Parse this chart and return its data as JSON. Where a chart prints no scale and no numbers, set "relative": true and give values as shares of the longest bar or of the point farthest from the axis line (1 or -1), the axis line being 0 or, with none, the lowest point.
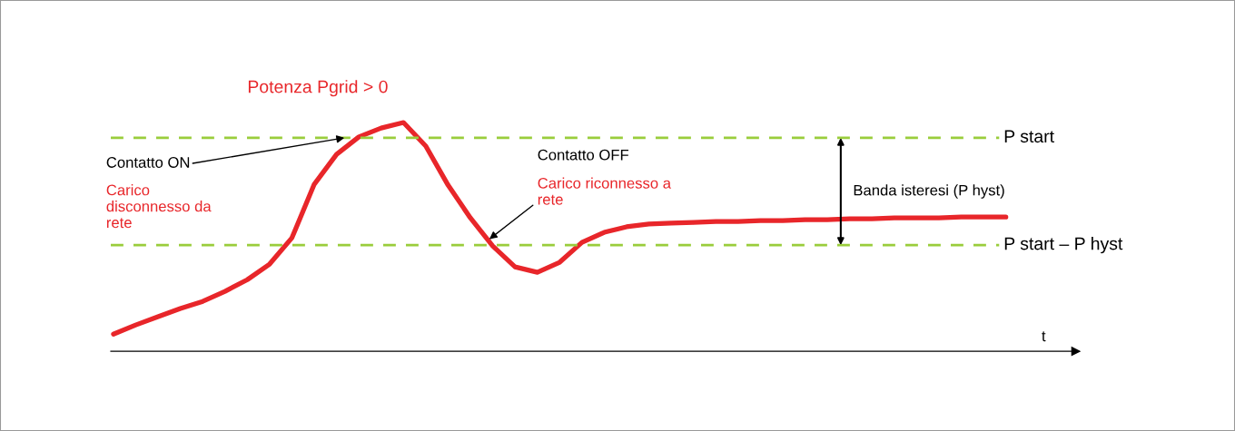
{
  "chart_data": {
    "type": "line",
    "relative": true,
    "title": "Potenza Pgrid > 0",
    "xlabel": "t",
    "categories": [
      null,
      null,
      null,
      null,
      null,
      null,
      null,
      null,
      null,
      null,
      null,
      null,
      null,
      null,
      null,
      null,
      null,
      null,
      null,
      null,
      null,
      null,
      null,
      null,
      null,
      null,
      null,
      null,
      null,
      null,
      null,
      null,
      null,
      null,
      null,
      null,
      null,
      null,
      null,
      null,
      null
    ],
    "series": [
      {
        "color": "#e8262a",
        "values": [
          0.075,
          0.115,
          0.151,
          0.187,
          0.218,
          0.262,
          0.313,
          0.381,
          0.496,
          0.73,
          0.861,
          0.937,
          0.976,
          1.0,
          0.897,
          0.726,
          0.583,
          0.46,
          0.369,
          0.345,
          0.389,
          0.476,
          0.52,
          0.544,
          0.556,
          0.56,
          0.563,
          0.567,
          0.567,
          0.571,
          0.571,
          0.575,
          0.575,
          0.579,
          0.579,
          0.583,
          0.583,
          0.583,
          0.587,
          0.587,
          0.587
        ]
      }
    ],
    "ref_lines": [
      {
        "axis": "y",
        "value": 0.933,
        "label": "P start",
        "color": "#9acd3c",
        "line_style": "dashed"
      },
      {
        "axis": "y",
        "value": 0.464,
        "label": "P start – P hyst",
        "color": "#9acd3c",
        "line_style": "dashed"
      }
    ],
    "annotations": [
      "Contatto ON",
      "Carico\ndisconnesso da\nrete",
      "Contatto OFF",
      "Carico riconnesso a\nrete",
      "Banda isteresi (P hyst)"
    ],
    "grid": false,
    "legend": false,
    "marker": "none",
    "line_style": "solid"
  }
}
